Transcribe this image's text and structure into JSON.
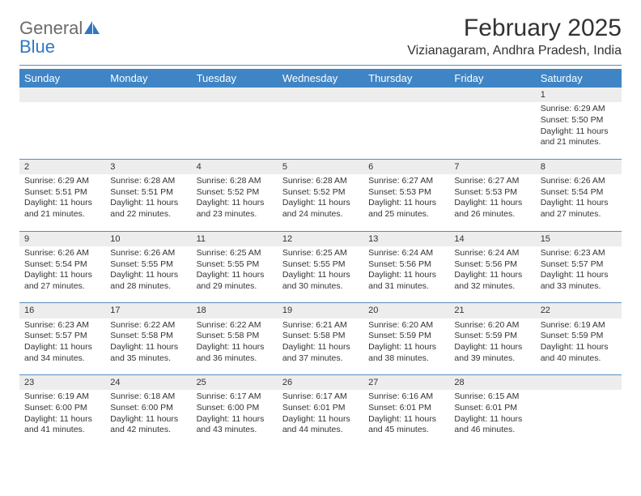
{
  "logo": {
    "text1": "General",
    "text2": "Blue"
  },
  "title": "February 2025",
  "location": "Vizianagaram, Andhra Pradesh, India",
  "colors": {
    "header_bg": "#3f85c6",
    "header_text": "#ffffff",
    "daynum_bg": "#ededed",
    "divider": "#5c8bbd",
    "text": "#333333",
    "logo_gray": "#6b6b6b",
    "logo_blue": "#2f78c1"
  },
  "weekdays": [
    "Sunday",
    "Monday",
    "Tuesday",
    "Wednesday",
    "Thursday",
    "Friday",
    "Saturday"
  ],
  "weeks": [
    [
      null,
      null,
      null,
      null,
      null,
      null,
      {
        "n": "1",
        "sunrise": "6:29 AM",
        "sunset": "5:50 PM",
        "daylight": "11 hours and 21 minutes."
      }
    ],
    [
      {
        "n": "2",
        "sunrise": "6:29 AM",
        "sunset": "5:51 PM",
        "daylight": "11 hours and 21 minutes."
      },
      {
        "n": "3",
        "sunrise": "6:28 AM",
        "sunset": "5:51 PM",
        "daylight": "11 hours and 22 minutes."
      },
      {
        "n": "4",
        "sunrise": "6:28 AM",
        "sunset": "5:52 PM",
        "daylight": "11 hours and 23 minutes."
      },
      {
        "n": "5",
        "sunrise": "6:28 AM",
        "sunset": "5:52 PM",
        "daylight": "11 hours and 24 minutes."
      },
      {
        "n": "6",
        "sunrise": "6:27 AM",
        "sunset": "5:53 PM",
        "daylight": "11 hours and 25 minutes."
      },
      {
        "n": "7",
        "sunrise": "6:27 AM",
        "sunset": "5:53 PM",
        "daylight": "11 hours and 26 minutes."
      },
      {
        "n": "8",
        "sunrise": "6:26 AM",
        "sunset": "5:54 PM",
        "daylight": "11 hours and 27 minutes."
      }
    ],
    [
      {
        "n": "9",
        "sunrise": "6:26 AM",
        "sunset": "5:54 PM",
        "daylight": "11 hours and 27 minutes."
      },
      {
        "n": "10",
        "sunrise": "6:26 AM",
        "sunset": "5:55 PM",
        "daylight": "11 hours and 28 minutes."
      },
      {
        "n": "11",
        "sunrise": "6:25 AM",
        "sunset": "5:55 PM",
        "daylight": "11 hours and 29 minutes."
      },
      {
        "n": "12",
        "sunrise": "6:25 AM",
        "sunset": "5:55 PM",
        "daylight": "11 hours and 30 minutes."
      },
      {
        "n": "13",
        "sunrise": "6:24 AM",
        "sunset": "5:56 PM",
        "daylight": "11 hours and 31 minutes."
      },
      {
        "n": "14",
        "sunrise": "6:24 AM",
        "sunset": "5:56 PM",
        "daylight": "11 hours and 32 minutes."
      },
      {
        "n": "15",
        "sunrise": "6:23 AM",
        "sunset": "5:57 PM",
        "daylight": "11 hours and 33 minutes."
      }
    ],
    [
      {
        "n": "16",
        "sunrise": "6:23 AM",
        "sunset": "5:57 PM",
        "daylight": "11 hours and 34 minutes."
      },
      {
        "n": "17",
        "sunrise": "6:22 AM",
        "sunset": "5:58 PM",
        "daylight": "11 hours and 35 minutes."
      },
      {
        "n": "18",
        "sunrise": "6:22 AM",
        "sunset": "5:58 PM",
        "daylight": "11 hours and 36 minutes."
      },
      {
        "n": "19",
        "sunrise": "6:21 AM",
        "sunset": "5:58 PM",
        "daylight": "11 hours and 37 minutes."
      },
      {
        "n": "20",
        "sunrise": "6:20 AM",
        "sunset": "5:59 PM",
        "daylight": "11 hours and 38 minutes."
      },
      {
        "n": "21",
        "sunrise": "6:20 AM",
        "sunset": "5:59 PM",
        "daylight": "11 hours and 39 minutes."
      },
      {
        "n": "22",
        "sunrise": "6:19 AM",
        "sunset": "5:59 PM",
        "daylight": "11 hours and 40 minutes."
      }
    ],
    [
      {
        "n": "23",
        "sunrise": "6:19 AM",
        "sunset": "6:00 PM",
        "daylight": "11 hours and 41 minutes."
      },
      {
        "n": "24",
        "sunrise": "6:18 AM",
        "sunset": "6:00 PM",
        "daylight": "11 hours and 42 minutes."
      },
      {
        "n": "25",
        "sunrise": "6:17 AM",
        "sunset": "6:00 PM",
        "daylight": "11 hours and 43 minutes."
      },
      {
        "n": "26",
        "sunrise": "6:17 AM",
        "sunset": "6:01 PM",
        "daylight": "11 hours and 44 minutes."
      },
      {
        "n": "27",
        "sunrise": "6:16 AM",
        "sunset": "6:01 PM",
        "daylight": "11 hours and 45 minutes."
      },
      {
        "n": "28",
        "sunrise": "6:15 AM",
        "sunset": "6:01 PM",
        "daylight": "11 hours and 46 minutes."
      },
      null
    ]
  ],
  "labels": {
    "sunrise": "Sunrise:",
    "sunset": "Sunset:",
    "daylight": "Daylight:"
  }
}
